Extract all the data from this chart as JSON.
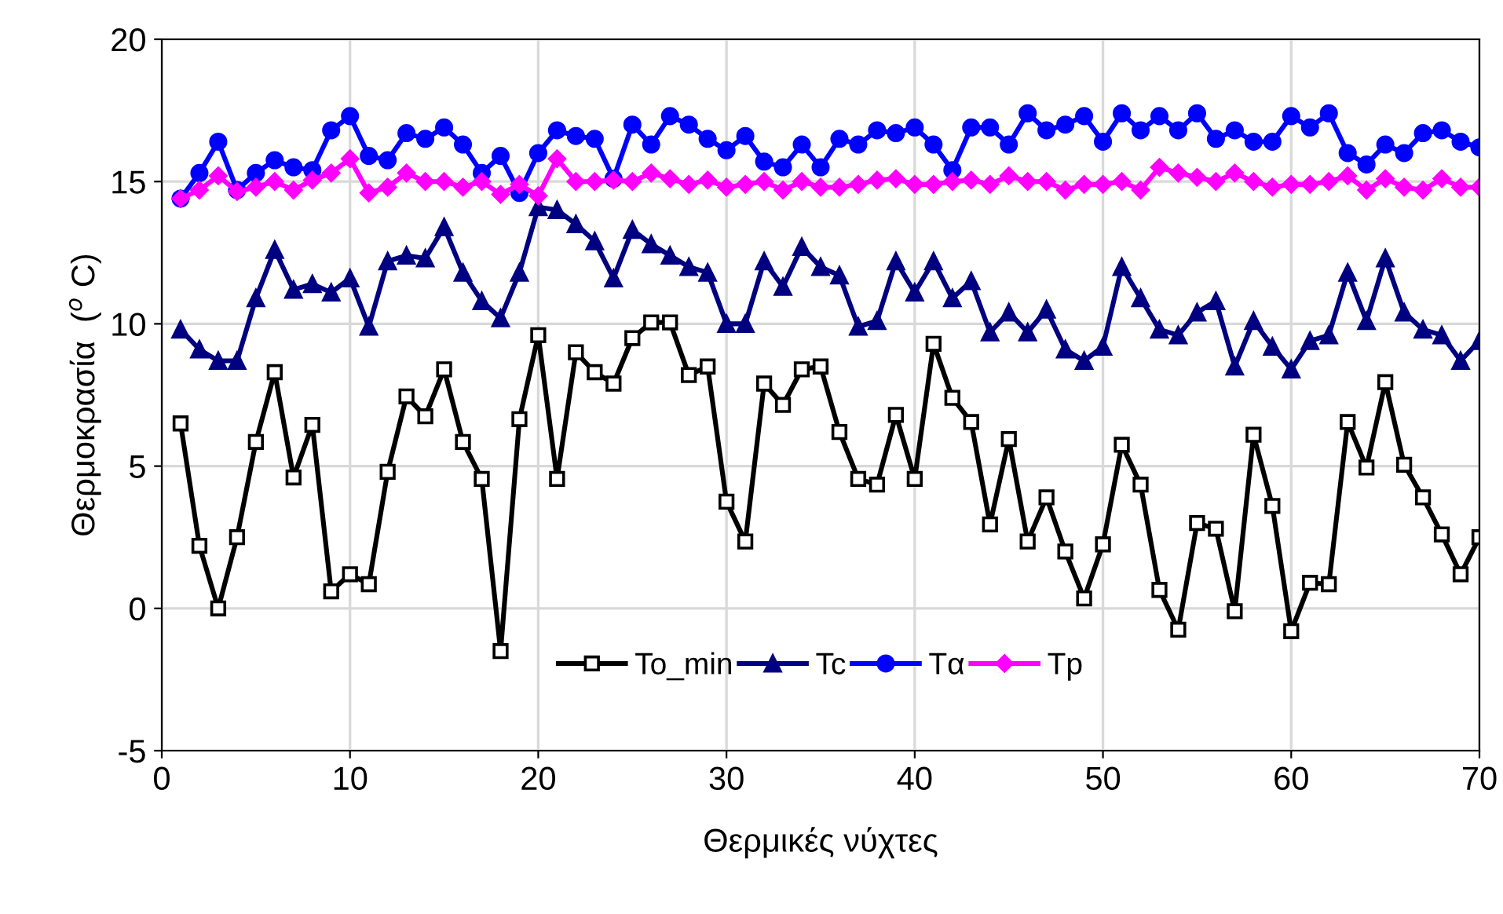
{
  "chart_data": {
    "type": "line",
    "xlabel": "Θερμικές νύχτες",
    "ylabel": "Θερμοκρασία  ($^{o}$ C)",
    "x": [
      1,
      2,
      3,
      4,
      5,
      6,
      7,
      8,
      9,
      10,
      11,
      12,
      13,
      14,
      15,
      16,
      17,
      18,
      19,
      20,
      21,
      22,
      23,
      24,
      25,
      26,
      27,
      28,
      29,
      30,
      31,
      32,
      33,
      34,
      35,
      36,
      37,
      38,
      39,
      40,
      41,
      42,
      43,
      44,
      45,
      46,
      47,
      48,
      49,
      50,
      51,
      52,
      53,
      54,
      55,
      56,
      57,
      58,
      59,
      60,
      61,
      62,
      63,
      64,
      65,
      66,
      67,
      68,
      69,
      70
    ],
    "xlim": [
      0,
      70
    ],
    "xticks": [
      0,
      10,
      20,
      30,
      40,
      50,
      60,
      70
    ],
    "ylim": [
      -5,
      20
    ],
    "yticks": [
      -5,
      0,
      5,
      10,
      15,
      20
    ],
    "grid": true,
    "legend": "bottom",
    "line_style": "solid",
    "series": [
      {
        "name": "To_min",
        "color": "#000000",
        "marker": "square",
        "values": [
          6.5,
          2.2,
          0.0,
          2.5,
          5.85,
          8.3,
          4.6,
          6.45,
          0.6,
          1.2,
          0.85,
          4.8,
          7.45,
          6.75,
          8.4,
          5.85,
          4.55,
          -1.5,
          6.65,
          9.6,
          4.55,
          9.0,
          8.3,
          7.9,
          9.5,
          10.05,
          10.05,
          8.2,
          8.5,
          3.75,
          2.35,
          7.9,
          7.15,
          8.4,
          8.5,
          6.2,
          4.55,
          4.35,
          6.8,
          4.55,
          9.3,
          7.4,
          6.55,
          2.95,
          5.95,
          2.35,
          3.9,
          2.0,
          0.35,
          2.25,
          5.75,
          4.35,
          0.65,
          -0.75,
          3.0,
          2.8,
          -0.1,
          6.1,
          3.6,
          -0.8,
          0.9,
          0.85,
          6.55,
          4.95,
          7.95,
          5.05,
          3.9,
          2.6,
          1.2,
          2.5
        ]
      },
      {
        "name": "Tc",
        "color": "#000080",
        "marker": "triangle",
        "values": [
          9.8,
          9.1,
          8.7,
          8.7,
          10.9,
          12.6,
          11.2,
          11.4,
          11.1,
          11.6,
          9.9,
          12.2,
          12.4,
          12.3,
          13.4,
          11.8,
          10.8,
          10.2,
          11.8,
          14.1,
          14.0,
          13.5,
          12.9,
          11.6,
          13.3,
          12.8,
          12.4,
          12.0,
          11.8,
          10.0,
          10.0,
          12.2,
          11.3,
          12.7,
          12.0,
          11.7,
          9.9,
          10.1,
          12.2,
          11.1,
          12.2,
          10.9,
          11.5,
          9.7,
          10.4,
          9.7,
          10.5,
          9.1,
          8.7,
          9.2,
          12.0,
          10.9,
          9.8,
          9.6,
          10.4,
          10.8,
          8.5,
          10.1,
          9.2,
          8.4,
          9.4,
          9.6,
          11.8,
          10.1,
          12.3,
          10.4,
          9.8,
          9.6,
          8.7,
          9.4
        ]
      },
      {
        "name": "Tα",
        "color": "#0000ff",
        "marker": "circle",
        "values": [
          14.4,
          15.3,
          16.4,
          14.7,
          15.3,
          15.75,
          15.5,
          15.4,
          16.8,
          17.3,
          15.9,
          15.75,
          16.7,
          16.5,
          16.9,
          16.3,
          15.3,
          15.9,
          14.6,
          16.0,
          16.8,
          16.6,
          16.5,
          15.1,
          17.0,
          16.3,
          17.3,
          17.0,
          16.5,
          16.1,
          16.6,
          15.7,
          15.5,
          16.3,
          15.5,
          16.5,
          16.3,
          16.8,
          16.7,
          16.9,
          16.3,
          15.4,
          16.9,
          16.9,
          16.3,
          17.4,
          16.8,
          17.0,
          17.3,
          16.4,
          17.4,
          16.8,
          17.3,
          16.8,
          17.4,
          16.5,
          16.8,
          16.4,
          16.4,
          17.3,
          16.9,
          17.4,
          16.0,
          15.6,
          16.3,
          16.0,
          16.7,
          16.8,
          16.4,
          16.2
        ]
      },
      {
        "name": "Tp",
        "color": "#ff00ff",
        "marker": "diamond",
        "values": [
          14.4,
          14.7,
          15.2,
          14.65,
          14.8,
          15.0,
          14.7,
          15.05,
          15.3,
          15.8,
          14.6,
          14.8,
          15.3,
          15.0,
          15.0,
          14.8,
          15.0,
          14.55,
          14.9,
          14.5,
          15.8,
          15.0,
          15.0,
          15.05,
          15.0,
          15.3,
          15.1,
          14.9,
          15.05,
          14.8,
          14.9,
          15.0,
          14.7,
          15.0,
          14.8,
          14.8,
          14.9,
          15.05,
          15.1,
          14.9,
          14.9,
          15.0,
          15.05,
          14.9,
          15.2,
          15.0,
          15.0,
          14.7,
          14.9,
          14.9,
          15.0,
          14.7,
          15.5,
          15.3,
          15.15,
          15.0,
          15.3,
          15.0,
          14.8,
          14.9,
          14.9,
          15.0,
          15.2,
          14.7,
          15.1,
          14.8,
          14.7,
          15.1,
          14.8,
          14.8
        ]
      }
    ]
  }
}
